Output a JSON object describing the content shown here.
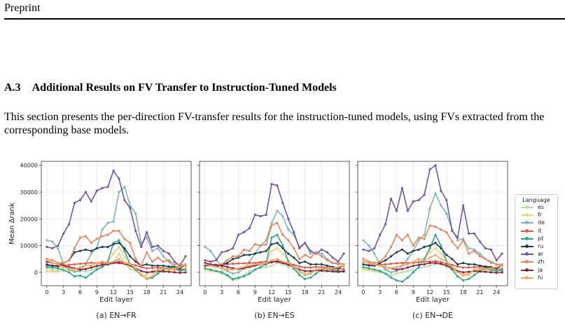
{
  "header": {
    "text": "Preprint"
  },
  "section": {
    "number": "A.3",
    "title": "Additional Results on FV Transfer to Instruction-Tuned Models"
  },
  "body": {
    "paragraph": "This section presents the per-direction FV-transfer results for the instruction-tuned models, using FVs extracted from the corresponding base models."
  },
  "legend": {
    "title": "Language",
    "items": [
      {
        "label": "es",
        "color": "#b9dba6"
      },
      {
        "label": "fr",
        "color": "#f3d27a"
      },
      {
        "label": "de",
        "color": "#7fb4b5"
      },
      {
        "label": "it",
        "color": "#d85c4c"
      },
      {
        "label": "pt",
        "color": "#2fa593"
      },
      {
        "label": "ru",
        "color": "#1f3f4a"
      },
      {
        "label": "ar",
        "color": "#6f55a5"
      },
      {
        "label": "zh",
        "color": "#e8855a"
      },
      {
        "label": "ja",
        "color": "#8a2345"
      },
      {
        "label": "hi",
        "color": "#f2a566"
      }
    ]
  },
  "chart_data": [
    {
      "type": "line",
      "caption": "(a) EN→FR",
      "xlabel": "Edit layer",
      "ylabel": "Mean Δrank",
      "xticks": [
        0,
        3,
        6,
        9,
        12,
        15,
        18,
        21,
        24
      ],
      "yticks": [
        0,
        10000,
        20000,
        30000,
        40000
      ],
      "ylim": [
        -5000,
        41500
      ],
      "xlim": [
        -1,
        26
      ],
      "x": [
        0,
        1,
        2,
        3,
        4,
        5,
        6,
        7,
        8,
        9,
        10,
        11,
        12,
        13,
        14,
        15,
        16,
        17,
        18,
        19,
        20,
        21,
        22,
        23,
        24,
        25
      ],
      "series": [
        {
          "name": "es",
          "values": [
            1500,
            800,
            700,
            1800,
            1200,
            900,
            500,
            300,
            800,
            1500,
            2400,
            2800,
            3500,
            7000,
            3200,
            1200,
            700,
            -1200,
            -1000,
            500,
            1200,
            800,
            1000,
            700,
            900,
            1800
          ]
        },
        {
          "name": "fr",
          "values": [
            500,
            300,
            200,
            700,
            1000,
            800,
            1000,
            1500,
            1800,
            2000,
            3000,
            4000,
            7000,
            9500,
            5500,
            2500,
            800,
            -500,
            -2000,
            -1500,
            500,
            800,
            600,
            1200,
            800,
            1500
          ]
        },
        {
          "name": "de",
          "values": [
            12000,
            11500,
            9000,
            3000,
            1000,
            200,
            500,
            3000,
            7000,
            9000,
            16000,
            18500,
            19000,
            30000,
            32000,
            25000,
            22000,
            11000,
            13000,
            8000,
            9000,
            6000,
            4000,
            2000,
            2500,
            3000
          ]
        },
        {
          "name": "it",
          "values": [
            2500,
            2300,
            2000,
            2600,
            2800,
            3000,
            3200,
            3400,
            3600,
            3400,
            3500,
            3700,
            3800,
            4000,
            3600,
            3000,
            2600,
            2000,
            1500,
            1600,
            1800,
            1700,
            1500,
            1300,
            1200,
            1000
          ]
        },
        {
          "name": "pt",
          "values": [
            2000,
            1700,
            1500,
            800,
            0,
            -1500,
            -1200,
            -2000,
            -500,
            1000,
            2000,
            4000,
            11000,
            12000,
            8000,
            3000,
            1000,
            -1000,
            -2500,
            -2000,
            -500,
            1000,
            2000,
            1500,
            500,
            1000
          ]
        },
        {
          "name": "ru",
          "values": [
            3000,
            2500,
            2500,
            3500,
            4500,
            7500,
            8000,
            8500,
            8000,
            9000,
            9500,
            9500,
            10500,
            11000,
            9000,
            6000,
            4000,
            2500,
            3000,
            2500,
            2500,
            2500,
            2200,
            2000,
            1500,
            3000
          ]
        },
        {
          "name": "ar",
          "values": [
            9500,
            9000,
            10000,
            14500,
            18000,
            26000,
            27000,
            30000,
            26500,
            30500,
            31500,
            32000,
            38000,
            35000,
            27000,
            24000,
            15500,
            9500,
            15000,
            9500,
            10000,
            8000,
            7000,
            4000,
            2500,
            6000
          ]
        },
        {
          "name": "zh",
          "values": [
            5000,
            4500,
            3500,
            3500,
            4500,
            9000,
            13000,
            13500,
            11000,
            12500,
            13500,
            14000,
            15500,
            15500,
            12500,
            11000,
            5000,
            2500,
            7500,
            4000,
            5500,
            4000,
            4500,
            3000,
            3000,
            2500
          ]
        },
        {
          "name": "ja",
          "values": [
            4000,
            3500,
            3000,
            2500,
            2000,
            1500,
            1000,
            1200,
            1800,
            2400,
            2800,
            3000,
            3500,
            3500,
            3200,
            2500,
            1500,
            500,
            0,
            200,
            500,
            300,
            200,
            0,
            -200,
            0
          ]
        },
        {
          "name": "hi",
          "values": [
            4500,
            3500,
            3000,
            2000,
            1500,
            1200,
            1800,
            2800,
            2500,
            3500,
            4000,
            3500,
            4000,
            5000,
            3500,
            3000,
            1500,
            -1000,
            -2500,
            -1500,
            1000,
            1500,
            1200,
            1500,
            2000,
            3000
          ]
        }
      ]
    },
    {
      "type": "line",
      "caption": "(b) EN→ES",
      "xlabel": "Edit layer",
      "xticks": [
        0,
        3,
        6,
        9,
        12,
        15,
        18,
        21,
        24
      ],
      "yticks": [
        0,
        10000,
        20000,
        30000,
        40000
      ],
      "ylim": [
        -5000,
        41500
      ],
      "xlim": [
        -1,
        26
      ],
      "x": [
        0,
        1,
        2,
        3,
        4,
        5,
        6,
        7,
        8,
        9,
        10,
        11,
        12,
        13,
        14,
        15,
        16,
        17,
        18,
        19,
        20,
        21,
        22,
        23,
        24,
        25
      ],
      "series": [
        {
          "name": "es",
          "values": [
            1500,
            1000,
            500,
            -500,
            -1500,
            -3000,
            -2500,
            -1000,
            500,
            1000,
            1500,
            2000,
            2500,
            3500,
            3000,
            2000,
            1000,
            0,
            -500,
            0,
            1000,
            1500,
            1000,
            500,
            0,
            500
          ]
        },
        {
          "name": "fr",
          "values": [
            800,
            500,
            300,
            500,
            1000,
            1500,
            1500,
            2000,
            2500,
            3000,
            3500,
            4000,
            8000,
            9000,
            7000,
            4500,
            2500,
            500,
            -1000,
            -500,
            500,
            1000,
            800,
            1000,
            1200,
            1500
          ]
        },
        {
          "name": "de",
          "values": [
            9500,
            8000,
            5000,
            2000,
            500,
            -500,
            0,
            1500,
            4000,
            7000,
            10000,
            12000,
            18500,
            23000,
            21000,
            16000,
            14000,
            9500,
            11000,
            7000,
            7500,
            7000,
            5000,
            3500,
            3000,
            3000
          ]
        },
        {
          "name": "it",
          "values": [
            3000,
            2800,
            2500,
            2800,
            3000,
            3200,
            3300,
            3400,
            3500,
            3500,
            3800,
            4000,
            4000,
            4200,
            3800,
            3200,
            2800,
            2200,
            1800,
            1800,
            2000,
            2000,
            1800,
            1500,
            1300,
            1200
          ]
        },
        {
          "name": "pt",
          "values": [
            1500,
            1000,
            500,
            0,
            -1000,
            -2500,
            -2000,
            -1500,
            -500,
            1000,
            2000,
            3000,
            13000,
            14000,
            10000,
            4000,
            1500,
            -1000,
            -2500,
            -2000,
            -500,
            1000,
            1500,
            1000,
            500,
            500
          ]
        },
        {
          "name": "ru",
          "values": [
            2500,
            2500,
            2000,
            3000,
            3500,
            5000,
            5500,
            6500,
            6500,
            7000,
            7500,
            8000,
            10500,
            11000,
            9000,
            7000,
            5500,
            3500,
            4000,
            3000,
            3000,
            3000,
            2500,
            2000,
            1500,
            2500
          ]
        },
        {
          "name": "ar",
          "values": [
            4500,
            4000,
            4500,
            7500,
            8000,
            9000,
            14000,
            15000,
            16500,
            21500,
            21000,
            21500,
            33000,
            32500,
            26000,
            20000,
            15000,
            9000,
            11000,
            8000,
            7000,
            8500,
            7500,
            5500,
            4000,
            7000
          ]
        },
        {
          "name": "zh",
          "values": [
            3500,
            3000,
            2500,
            3000,
            4500,
            6000,
            6000,
            8500,
            8000,
            10500,
            10000,
            10500,
            17500,
            18500,
            14000,
            12000,
            9000,
            5000,
            6500,
            5500,
            7500,
            6000,
            4500,
            3500,
            3500,
            3000
          ]
        },
        {
          "name": "ja",
          "values": [
            3500,
            3000,
            2800,
            2500,
            2000,
            1500,
            1200,
            1500,
            2000,
            2500,
            3000,
            3300,
            3800,
            4000,
            3500,
            2800,
            2000,
            1000,
            500,
            500,
            800,
            600,
            500,
            300,
            200,
            300
          ]
        },
        {
          "name": "hi",
          "values": [
            3000,
            2500,
            2000,
            1500,
            1000,
            1000,
            1500,
            2000,
            2500,
            3000,
            3000,
            3500,
            4500,
            5000,
            4000,
            3500,
            2000,
            500,
            -1000,
            -500,
            1000,
            1500,
            1500,
            1500,
            2000,
            2500
          ]
        }
      ]
    },
    {
      "type": "line",
      "caption": "(c) EN→DE",
      "xlabel": "Edit layer",
      "xticks": [
        0,
        3,
        6,
        9,
        12,
        15,
        18,
        21,
        24
      ],
      "yticks": [
        0,
        10000,
        20000,
        30000,
        40000
      ],
      "ylim": [
        -5000,
        41500
      ],
      "xlim": [
        -1,
        26
      ],
      "x": [
        0,
        1,
        2,
        3,
        4,
        5,
        6,
        7,
        8,
        9,
        10,
        11,
        12,
        13,
        14,
        15,
        16,
        17,
        18,
        19,
        20,
        21,
        22,
        23,
        24,
        25
      ],
      "series": [
        {
          "name": "es",
          "values": [
            1500,
            1000,
            500,
            0,
            -500,
            -1000,
            -500,
            0,
            500,
            1000,
            1500,
            2000,
            2500,
            3000,
            3000,
            2000,
            1000,
            0,
            -1000,
            -500,
            500,
            1000,
            800,
            500,
            300,
            800
          ]
        },
        {
          "name": "fr",
          "values": [
            1000,
            800,
            500,
            500,
            1000,
            1500,
            2000,
            2500,
            3000,
            3500,
            4000,
            5000,
            7500,
            9000,
            7000,
            4500,
            2500,
            500,
            -1500,
            -1000,
            500,
            1000,
            800,
            1200,
            1000,
            1500
          ]
        },
        {
          "name": "de",
          "values": [
            12000,
            10000,
            7000,
            3000,
            1000,
            0,
            500,
            2500,
            5000,
            8000,
            12000,
            14000,
            24000,
            29500,
            25000,
            22000,
            16000,
            12000,
            12500,
            9000,
            8500,
            7000,
            5000,
            3500,
            3000,
            3000
          ]
        },
        {
          "name": "it",
          "values": [
            3000,
            2800,
            2600,
            2800,
            3000,
            3200,
            3400,
            3500,
            3500,
            3600,
            3800,
            4000,
            4000,
            4200,
            3800,
            3200,
            2800,
            2200,
            1800,
            1800,
            2000,
            2000,
            1800,
            1500,
            1300,
            1200
          ]
        },
        {
          "name": "pt",
          "values": [
            2000,
            1500,
            1000,
            500,
            -500,
            -2000,
            -3000,
            -3500,
            -2000,
            0,
            2000,
            5000,
            9000,
            14000,
            10000,
            4000,
            1000,
            -1500,
            -3000,
            -2500,
            -1000,
            500,
            1500,
            1000,
            500,
            800
          ]
        },
        {
          "name": "ru",
          "values": [
            3000,
            2500,
            2500,
            3500,
            4500,
            6000,
            7500,
            8500,
            7000,
            8000,
            8500,
            9500,
            10000,
            11000,
            9000,
            6500,
            5000,
            3000,
            3500,
            3000,
            3000,
            2500,
            2200,
            2000,
            1500,
            2500
          ]
        },
        {
          "name": "ar",
          "values": [
            8500,
            8000,
            9000,
            14000,
            18000,
            27500,
            23000,
            31500,
            23000,
            26500,
            27000,
            29000,
            38500,
            40000,
            30500,
            27000,
            15500,
            13000,
            25000,
            14500,
            14500,
            11500,
            9000,
            8500,
            4500,
            7000
          ]
        },
        {
          "name": "zh",
          "values": [
            5000,
            4000,
            3500,
            4000,
            6000,
            9500,
            14000,
            12000,
            14000,
            10000,
            13000,
            12500,
            17500,
            17000,
            16000,
            15000,
            11500,
            9000,
            12000,
            7000,
            8000,
            6000,
            5000,
            4000,
            3000,
            2500
          ]
        },
        {
          "name": "ja",
          "values": [
            4000,
            3500,
            3000,
            2500,
            2000,
            1500,
            1000,
            1200,
            1800,
            2400,
            2800,
            3000,
            3500,
            3500,
            3200,
            2500,
            1500,
            500,
            0,
            200,
            500,
            300,
            200,
            0,
            -200,
            0
          ]
        },
        {
          "name": "hi",
          "values": [
            4000,
            3500,
            3000,
            2500,
            2000,
            1500,
            2000,
            2500,
            3000,
            4000,
            5000,
            4500,
            5500,
            6500,
            5000,
            4000,
            2000,
            0,
            -1000,
            -500,
            1000,
            1500,
            1200,
            1500,
            2000,
            2500
          ]
        }
      ]
    }
  ],
  "footer": {
    "text": ""
  }
}
